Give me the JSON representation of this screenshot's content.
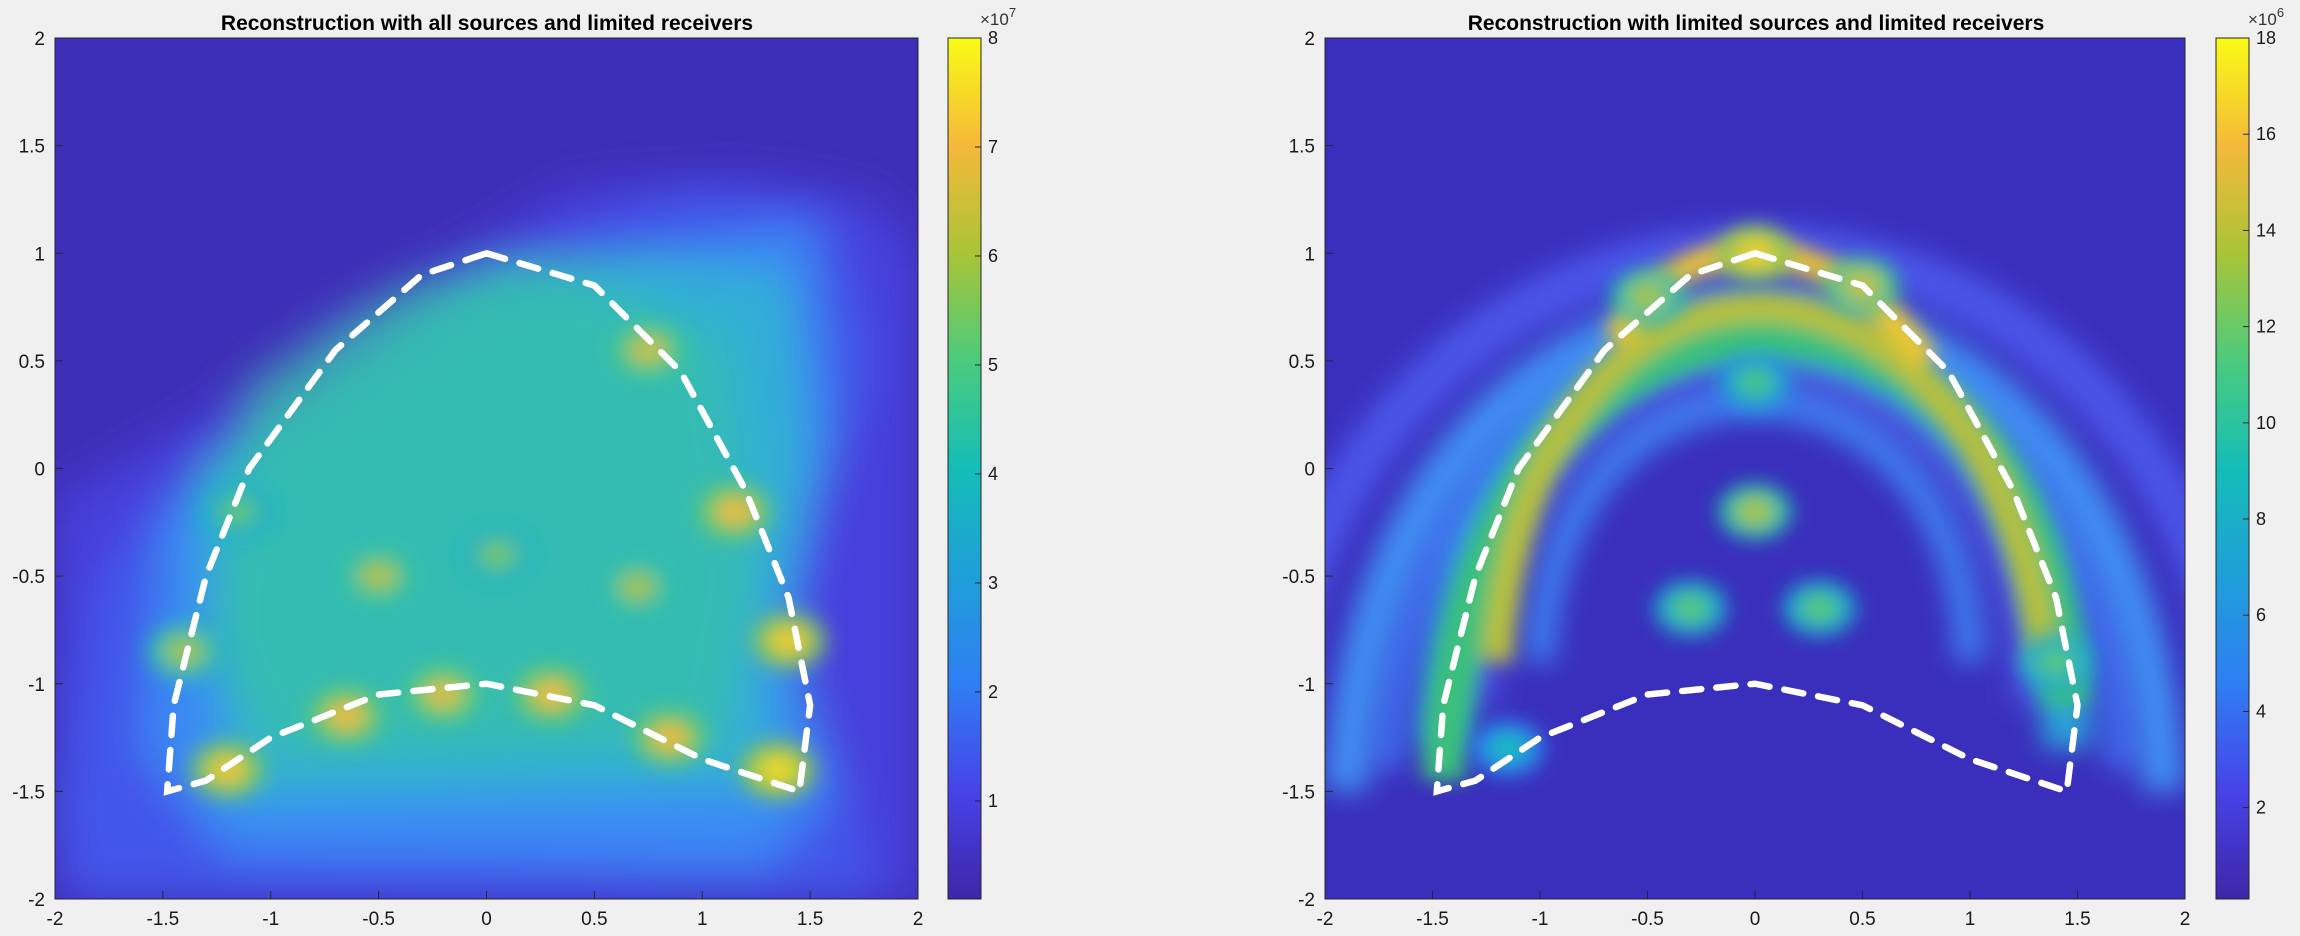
{
  "chart_data": [
    {
      "type": "heatmap",
      "title": "Reconstruction with all sources and limited receivers",
      "xlim": [
        -2,
        2
      ],
      "ylim": [
        -2,
        2
      ],
      "x_ticks": [
        "-2",
        "-1.5",
        "-1",
        "-0.5",
        "0",
        "0.5",
        "1",
        "1.5",
        "2"
      ],
      "y_ticks": [
        "2",
        "1.5",
        "1",
        "0.5",
        "0",
        "-0.5",
        "-1",
        "-1.5",
        "-2"
      ],
      "colorbar": {
        "range": [
          0.1,
          8
        ],
        "ticks": [
          "1",
          "2",
          "3",
          "4",
          "5",
          "6",
          "7",
          "8"
        ],
        "tick_values": [
          1,
          2,
          3,
          4,
          5,
          6,
          7,
          8
        ],
        "exponent": "×10",
        "exponent_power": "7"
      },
      "boundary": {
        "style": "white dashed",
        "shape": "kite",
        "points": [
          [
            0,
            1
          ],
          [
            0.5,
            0.85
          ],
          [
            0.9,
            0.45
          ],
          [
            1.2,
            -0.1
          ],
          [
            1.4,
            -0.6
          ],
          [
            1.5,
            -1.1
          ],
          [
            1.45,
            -1.5
          ],
          [
            1.0,
            -1.35
          ],
          [
            0.5,
            -1.1
          ],
          [
            0,
            -1
          ],
          [
            -0.5,
            -1.05
          ],
          [
            -1,
            -1.25
          ],
          [
            -1.3,
            -1.45
          ],
          [
            -1.48,
            -1.5
          ],
          [
            -1.45,
            -1.1
          ],
          [
            -1.3,
            -0.5
          ],
          [
            -1.1,
            0
          ],
          [
            -0.7,
            0.55
          ],
          [
            -0.3,
            0.9
          ],
          [
            0,
            1
          ]
        ]
      },
      "hotspots": [
        {
          "x": -1.2,
          "y": -1.4,
          "v": 7.2
        },
        {
          "x": -0.65,
          "y": -1.15,
          "v": 7.0
        },
        {
          "x": -0.2,
          "y": -1.05,
          "v": 6.8
        },
        {
          "x": 0.3,
          "y": -1.05,
          "v": 7.0
        },
        {
          "x": 0.85,
          "y": -1.25,
          "v": 7.0
        },
        {
          "x": 1.35,
          "y": -1.4,
          "v": 7.5
        },
        {
          "x": 1.4,
          "y": -0.8,
          "v": 7.3
        },
        {
          "x": 1.15,
          "y": -0.2,
          "v": 7.0
        },
        {
          "x": 0.75,
          "y": 0.55,
          "v": 6.5
        },
        {
          "x": -0.5,
          "y": -0.5,
          "v": 6.2
        },
        {
          "x": 0.05,
          "y": -0.4,
          "v": 5.5
        },
        {
          "x": 0.7,
          "y": -0.55,
          "v": 6.0
        },
        {
          "x": -1.4,
          "y": -0.85,
          "v": 6.0
        },
        {
          "x": -1.15,
          "y": -0.2,
          "v": 5.3
        }
      ]
    },
    {
      "type": "heatmap",
      "title": "Reconstruction with limited sources and limited receivers",
      "xlim": [
        -2,
        2
      ],
      "ylim": [
        -2,
        2
      ],
      "x_ticks": [
        "-2",
        "-1.5",
        "-1",
        "-0.5",
        "0",
        "0.5",
        "1",
        "1.5",
        "2"
      ],
      "y_ticks": [
        "2",
        "1.5",
        "1",
        "0.5",
        "0",
        "-0.5",
        "-1",
        "-1.5",
        "-2"
      ],
      "colorbar": {
        "range": [
          0.1,
          18
        ],
        "ticks": [
          "2",
          "4",
          "6",
          "8",
          "10",
          "12",
          "14",
          "16",
          "18"
        ],
        "tick_values": [
          2,
          4,
          6,
          8,
          10,
          12,
          14,
          16,
          18
        ],
        "exponent": "×10",
        "exponent_power": "6"
      },
      "boundary": {
        "style": "white dashed",
        "shape": "kite",
        "points": [
          [
            0,
            1
          ],
          [
            0.5,
            0.85
          ],
          [
            0.9,
            0.45
          ],
          [
            1.2,
            -0.1
          ],
          [
            1.4,
            -0.6
          ],
          [
            1.5,
            -1.1
          ],
          [
            1.45,
            -1.5
          ],
          [
            1.0,
            -1.35
          ],
          [
            0.5,
            -1.1
          ],
          [
            0,
            -1
          ],
          [
            -0.5,
            -1.05
          ],
          [
            -1,
            -1.25
          ],
          [
            -1.3,
            -1.45
          ],
          [
            -1.48,
            -1.5
          ],
          [
            -1.45,
            -1.1
          ],
          [
            -1.3,
            -0.5
          ],
          [
            -1.1,
            0
          ],
          [
            -0.7,
            0.55
          ],
          [
            -0.3,
            0.9
          ],
          [
            0,
            1
          ]
        ]
      },
      "hotspots": [
        {
          "x": 0,
          "y": 1.0,
          "v": 16.5
        },
        {
          "x": 0.5,
          "y": 0.85,
          "v": 14.5
        },
        {
          "x": -0.5,
          "y": 0.8,
          "v": 13.5
        },
        {
          "x": 0.0,
          "y": -0.2,
          "v": 13.5
        },
        {
          "x": -0.3,
          "y": -0.65,
          "v": 11.5
        },
        {
          "x": 0.3,
          "y": -0.65,
          "v": 11.5
        },
        {
          "x": 0.0,
          "y": 0.4,
          "v": 11.0
        },
        {
          "x": 1.4,
          "y": -0.9,
          "v": 11.5
        },
        {
          "x": -1.15,
          "y": -1.3,
          "v": 9.0
        }
      ]
    }
  ]
}
